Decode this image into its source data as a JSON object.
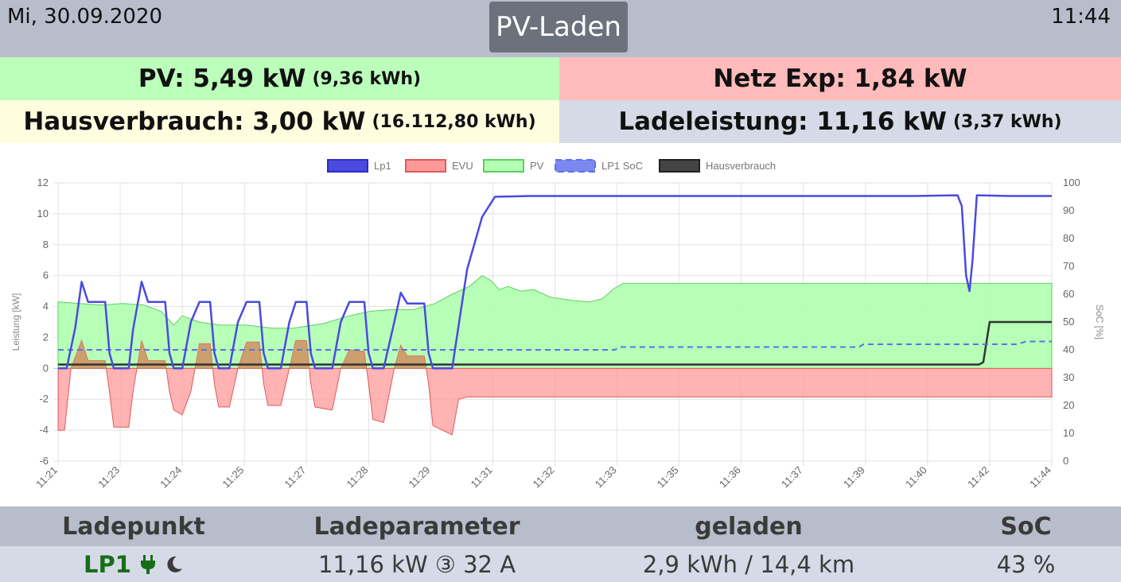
{
  "header": {
    "date": "Mi, 30.09.2020",
    "time": "11:44",
    "mode_button": "PV-Laden"
  },
  "tiles": {
    "pv": {
      "label": "PV: 5,49 kW",
      "sub": "(9,36 kWh)",
      "color": "#bbffbb"
    },
    "netz": {
      "label": "Netz Exp: 1,84 kW",
      "color": "#ffbbbb"
    },
    "haus": {
      "label": "Hausverbrauch: 3,00 kW",
      "sub": "(16.112,80 kWh)",
      "color": "#fefedf"
    },
    "lade": {
      "label": "Ladeleistung: 11,16 kW",
      "sub": "(3,37 kWh)",
      "color": "#d6dae6"
    }
  },
  "chart_data": {
    "type": "line",
    "legend": [
      "Lp1",
      "EVU",
      "PV",
      "LP1 SoC",
      "Hausverbrauch"
    ],
    "legend_position": "top",
    "ylabel": "Leistung [kW]",
    "y2label": "SoC [%]",
    "ylim": [
      -6,
      12
    ],
    "y2lim": [
      0,
      100
    ],
    "yticks": [
      12,
      10,
      8,
      6,
      4,
      2,
      0,
      -2,
      -4,
      -6
    ],
    "y2ticks": [
      100,
      90,
      80,
      70,
      60,
      50,
      40,
      30,
      20,
      10,
      0
    ],
    "xlim": [
      0,
      23.2
    ],
    "x_tick_labels": [
      "11:21",
      "11:23",
      "11:24",
      "11:25",
      "11:27",
      "11:28",
      "11:29",
      "11:31",
      "11:32",
      "11:33",
      "11:35",
      "11:36",
      "11:37",
      "11:39",
      "11:40",
      "11:42",
      "11:44"
    ],
    "x_tick_positions": [
      0,
      1.45,
      2.9,
      4.35,
      5.8,
      7.25,
      8.7,
      10.15,
      11.6,
      13.05,
      14.5,
      15.95,
      17.4,
      18.85,
      20.3,
      21.75,
      23.2
    ],
    "grid": true,
    "colors": {
      "lp1": "#4a4ae0",
      "evu": "#ff9999",
      "pv": "#b3ffb3",
      "soc": "#5a72e8",
      "haus": "#333333",
      "overlap": "#c49a60"
    },
    "series": [
      {
        "name": "Lp1",
        "points": [
          [
            0,
            0
          ],
          [
            0.2,
            0
          ],
          [
            0.4,
            2.6
          ],
          [
            0.55,
            5.6
          ],
          [
            0.7,
            4.3
          ],
          [
            1.1,
            4.3
          ],
          [
            1.2,
            1
          ],
          [
            1.3,
            0
          ],
          [
            1.65,
            0
          ],
          [
            1.75,
            2.5
          ],
          [
            1.95,
            5.6
          ],
          [
            2.1,
            4.3
          ],
          [
            2.5,
            4.3
          ],
          [
            2.6,
            1
          ],
          [
            2.7,
            0
          ],
          [
            2.9,
            0
          ],
          [
            3.1,
            3
          ],
          [
            3.3,
            4.3
          ],
          [
            3.55,
            4.3
          ],
          [
            3.65,
            1
          ],
          [
            3.75,
            0
          ],
          [
            4.0,
            0
          ],
          [
            4.2,
            3
          ],
          [
            4.4,
            4.3
          ],
          [
            4.7,
            4.3
          ],
          [
            4.8,
            1
          ],
          [
            4.9,
            0
          ],
          [
            5.2,
            0
          ],
          [
            5.4,
            3
          ],
          [
            5.55,
            4.3
          ],
          [
            5.8,
            4.3
          ],
          [
            5.9,
            1
          ],
          [
            6.0,
            0
          ],
          [
            6.4,
            0
          ],
          [
            6.6,
            3
          ],
          [
            6.8,
            4.3
          ],
          [
            7.15,
            4.3
          ],
          [
            7.25,
            1
          ],
          [
            7.35,
            0
          ],
          [
            7.6,
            0
          ],
          [
            7.85,
            3
          ],
          [
            8.0,
            4.9
          ],
          [
            8.15,
            4.2
          ],
          [
            8.55,
            4.2
          ],
          [
            8.65,
            1
          ],
          [
            8.75,
            0
          ],
          [
            9.2,
            0
          ],
          [
            9.55,
            6.4
          ],
          [
            9.9,
            9.8
          ],
          [
            10.2,
            11.1
          ],
          [
            11,
            11.15
          ],
          [
            14,
            11.15
          ],
          [
            17,
            11.15
          ],
          [
            20,
            11.15
          ],
          [
            21.0,
            11.2
          ],
          [
            21.1,
            10.5
          ],
          [
            21.2,
            6
          ],
          [
            21.28,
            5
          ],
          [
            21.35,
            7
          ],
          [
            21.45,
            11.2
          ],
          [
            22.2,
            11.15
          ],
          [
            23.2,
            11.15
          ]
        ]
      },
      {
        "name": "EVU",
        "points": [
          [
            0,
            -4
          ],
          [
            0.15,
            -4
          ],
          [
            0.3,
            0
          ],
          [
            0.55,
            1.8
          ],
          [
            0.7,
            0.5
          ],
          [
            1.1,
            0.5
          ],
          [
            1.2,
            -1.5
          ],
          [
            1.3,
            -3.8
          ],
          [
            1.65,
            -3.8
          ],
          [
            1.75,
            -1.5
          ],
          [
            1.95,
            1.8
          ],
          [
            2.1,
            0.5
          ],
          [
            2.5,
            0.5
          ],
          [
            2.6,
            -1.5
          ],
          [
            2.7,
            -2.7
          ],
          [
            2.9,
            -3
          ],
          [
            3.1,
            -1.5
          ],
          [
            3.3,
            1.6
          ],
          [
            3.55,
            1.6
          ],
          [
            3.65,
            -1
          ],
          [
            3.75,
            -2.5
          ],
          [
            4.0,
            -2.5
          ],
          [
            4.2,
            0
          ],
          [
            4.4,
            1.7
          ],
          [
            4.7,
            1.7
          ],
          [
            4.8,
            -1
          ],
          [
            4.9,
            -2.4
          ],
          [
            5.2,
            -2.4
          ],
          [
            5.4,
            0
          ],
          [
            5.55,
            1.8
          ],
          [
            5.8,
            1.8
          ],
          [
            5.9,
            -1
          ],
          [
            6.0,
            -2.5
          ],
          [
            6.4,
            -2.7
          ],
          [
            6.6,
            0
          ],
          [
            6.8,
            1.2
          ],
          [
            7.15,
            1.1
          ],
          [
            7.25,
            -1
          ],
          [
            7.35,
            -3.3
          ],
          [
            7.6,
            -3.5
          ],
          [
            7.85,
            0
          ],
          [
            8.0,
            1.5
          ],
          [
            8.15,
            0.8
          ],
          [
            8.55,
            0.8
          ],
          [
            8.65,
            -1
          ],
          [
            8.75,
            -3.7
          ],
          [
            9.2,
            -4.3
          ],
          [
            9.35,
            -2
          ],
          [
            9.55,
            -1.85
          ],
          [
            12,
            -1.85
          ],
          [
            16,
            -1.85
          ],
          [
            20,
            -1.85
          ],
          [
            23.2,
            -1.85
          ]
        ]
      },
      {
        "name": "PV",
        "points": [
          [
            0,
            4.3
          ],
          [
            0.5,
            4.2
          ],
          [
            1,
            4.1
          ],
          [
            1.5,
            4.2
          ],
          [
            2,
            4.1
          ],
          [
            2.4,
            3.7
          ],
          [
            2.7,
            2.8
          ],
          [
            2.9,
            3.4
          ],
          [
            3.3,
            3
          ],
          [
            3.8,
            2.8
          ],
          [
            4.4,
            2.8
          ],
          [
            5,
            2.6
          ],
          [
            5.5,
            2.6
          ],
          [
            6.2,
            2.9
          ],
          [
            6.8,
            3.4
          ],
          [
            7.3,
            3.7
          ],
          [
            7.8,
            3.8
          ],
          [
            8.3,
            3.8
          ],
          [
            8.8,
            4.2
          ],
          [
            9.2,
            4.8
          ],
          [
            9.6,
            5.3
          ],
          [
            9.9,
            6
          ],
          [
            10.1,
            5.7
          ],
          [
            10.3,
            5.1
          ],
          [
            10.5,
            5.3
          ],
          [
            10.8,
            5
          ],
          [
            11.1,
            5.1
          ],
          [
            11.5,
            4.6
          ],
          [
            12,
            4.4
          ],
          [
            12.4,
            4.3
          ],
          [
            12.7,
            4.5
          ],
          [
            13,
            5.2
          ],
          [
            13.2,
            5.5
          ],
          [
            16,
            5.5
          ],
          [
            20,
            5.5
          ],
          [
            23.2,
            5.5
          ]
        ]
      },
      {
        "name": "LP1 SoC",
        "points": [
          [
            0,
            40
          ],
          [
            13.0,
            40
          ],
          [
            13.1,
            41
          ],
          [
            18.7,
            41
          ],
          [
            18.8,
            42
          ],
          [
            22.4,
            42
          ],
          [
            22.6,
            43
          ],
          [
            23.2,
            43
          ]
        ]
      },
      {
        "name": "Hausverbrauch",
        "points": [
          [
            0,
            0.25
          ],
          [
            21.5,
            0.25
          ],
          [
            21.6,
            0.4
          ],
          [
            21.75,
            3
          ],
          [
            23.2,
            3
          ]
        ]
      }
    ]
  },
  "table": {
    "headers": [
      "Ladepunkt",
      "Ladeparameter",
      "geladen",
      "SoC"
    ],
    "row": {
      "ladepunkt": "LP1",
      "plug_icon": "plug-icon",
      "night_icon": "moon-icon",
      "ladeparameter": "11,16 kW ③ 32 A",
      "geladen": "2,9 kWh / 14,4 km",
      "soc": "43 %"
    }
  }
}
